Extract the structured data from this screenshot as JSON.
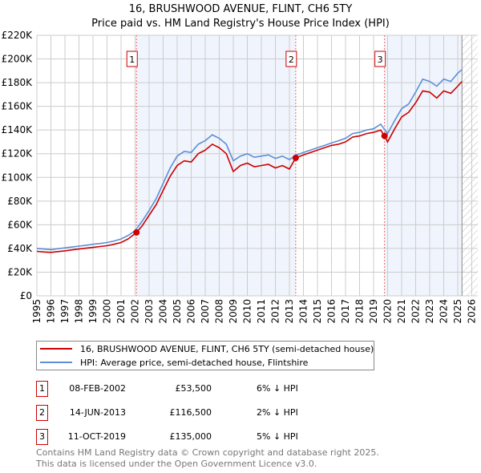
{
  "chart_data": {
    "type": "line",
    "title": "16, BRUSHWOOD AVENUE, FLINT, CH6 5TY",
    "subtitle": "Price paid vs. HM Land Registry's House Price Index (HPI)",
    "xlim": [
      1995,
      2026
    ],
    "ylim": [
      0,
      220000
    ],
    "x_ticks": [
      "1995",
      "1996",
      "1997",
      "1998",
      "1999",
      "2000",
      "2001",
      "2002",
      "2003",
      "2004",
      "2005",
      "2006",
      "2007",
      "2008",
      "2009",
      "2010",
      "2011",
      "2012",
      "2013",
      "2014",
      "2015",
      "2016",
      "2017",
      "2018",
      "2019",
      "2020",
      "2021",
      "2022",
      "2023",
      "2024",
      "2025",
      "2026"
    ],
    "y_ticks": [
      {
        "v": 0,
        "label": "£0"
      },
      {
        "v": 20000,
        "label": "£20K"
      },
      {
        "v": 40000,
        "label": "£40K"
      },
      {
        "v": 60000,
        "label": "£60K"
      },
      {
        "v": 80000,
        "label": "£80K"
      },
      {
        "v": 100000,
        "label": "£100K"
      },
      {
        "v": 120000,
        "label": "£120K"
      },
      {
        "v": 140000,
        "label": "£140K"
      },
      {
        "v": 160000,
        "label": "£160K"
      },
      {
        "v": 180000,
        "label": "£180K"
      },
      {
        "v": 200000,
        "label": "£200K"
      },
      {
        "v": 220000,
        "label": "£220K"
      }
    ],
    "grid": true,
    "series": [
      {
        "name": "16, BRUSHWOOD AVENUE, FLINT, CH6 5TY (semi-detached house)",
        "color": "#cc0000",
        "x": [
          1995,
          1995.5,
          1996,
          1996.5,
          1997,
          1997.5,
          1998,
          1998.5,
          1999,
          1999.5,
          2000,
          2000.5,
          2001,
          2001.5,
          2002.1,
          2002.5,
          2003,
          2003.5,
          2004,
          2004.5,
          2005,
          2005.5,
          2006,
          2006.5,
          2007,
          2007.5,
          2008,
          2008.5,
          2009,
          2009.5,
          2010,
          2010.5,
          2011,
          2011.5,
          2012,
          2012.5,
          2013,
          2013.45,
          2014,
          2014.5,
          2015,
          2015.5,
          2016,
          2016.5,
          2017,
          2017.5,
          2018,
          2018.5,
          2019,
          2019.5,
          2019.78,
          2020,
          2020.5,
          2021,
          2021.5,
          2022,
          2022.5,
          2023,
          2023.5,
          2024,
          2024.5,
          2025,
          2025.3
        ],
        "y": [
          37600,
          37000,
          36700,
          37400,
          38000,
          38800,
          39500,
          40200,
          40900,
          41600,
          42300,
          43500,
          45000,
          48000,
          53500,
          59000,
          68000,
          77000,
          89000,
          101000,
          110000,
          114000,
          113000,
          120000,
          123000,
          128000,
          125000,
          120000,
          105000,
          110000,
          112000,
          109000,
          110000,
          111000,
          108000,
          110000,
          107000,
          116500,
          119000,
          121000,
          123000,
          125000,
          127000,
          128000,
          130000,
          134000,
          135000,
          137000,
          138000,
          140000,
          135000,
          130000,
          141000,
          151000,
          155000,
          163000,
          173000,
          172000,
          167000,
          173000,
          171000,
          177000,
          181000
        ]
      },
      {
        "name": "HPI: Average price, semi-detached house, Flintshire",
        "color": "#5b8fd6",
        "x": [
          1995,
          1995.5,
          1996,
          1996.5,
          1997,
          1997.5,
          1998,
          1998.5,
          1999,
          1999.5,
          2000,
          2000.5,
          2001,
          2001.5,
          2002,
          2002.5,
          2003,
          2003.5,
          2004,
          2004.5,
          2005,
          2005.5,
          2006,
          2006.5,
          2007,
          2007.5,
          2008,
          2008.5,
          2009,
          2009.5,
          2010,
          2010.5,
          2011,
          2011.5,
          2012,
          2012.5,
          2013,
          2013.5,
          2014,
          2014.5,
          2015,
          2015.5,
          2016,
          2016.5,
          2017,
          2017.5,
          2018,
          2018.5,
          2019,
          2019.5,
          2020,
          2020.5,
          2021,
          2021.5,
          2022,
          2022.5,
          2023,
          2023.5,
          2024,
          2024.5,
          2025,
          2025.3
        ],
        "y": [
          40000,
          39500,
          39000,
          39800,
          40500,
          41200,
          42000,
          42700,
          43500,
          44200,
          45000,
          46300,
          48000,
          51000,
          55000,
          63000,
          72000,
          82000,
          95000,
          108000,
          118000,
          122000,
          121000,
          128000,
          131000,
          136000,
          133000,
          128000,
          114000,
          118000,
          120000,
          117000,
          118000,
          119000,
          116000,
          118000,
          115000,
          119000,
          121000,
          123000,
          125000,
          127000,
          129000,
          131000,
          133000,
          137000,
          138000,
          140000,
          141000,
          145000,
          137000,
          148000,
          158000,
          162000,
          172000,
          183000,
          181000,
          177000,
          183000,
          181000,
          188000,
          191000
        ]
      }
    ],
    "sales": [
      {
        "label": "1",
        "x": 2002.1,
        "y": 53500
      },
      {
        "label": "2",
        "x": 2013.45,
        "y": 116500
      },
      {
        "label": "3",
        "x": 2019.78,
        "y": 135000
      }
    ],
    "forecast_start": 2025.3
  },
  "legend": {
    "property": "16, BRUSHWOOD AVENUE, FLINT, CH6 5TY (semi-detached house)",
    "hpi": "HPI: Average price, semi-detached house, Flintshire"
  },
  "transactions": [
    {
      "num": "1",
      "date": "08-FEB-2002",
      "price": "£53,500",
      "hpi": "6% ↓ HPI"
    },
    {
      "num": "2",
      "date": "14-JUN-2013",
      "price": "£116,500",
      "hpi": "2% ↓ HPI"
    },
    {
      "num": "3",
      "date": "11-OCT-2019",
      "price": "£135,000",
      "hpi": "5% ↓ HPI"
    }
  ],
  "footer": {
    "line1": "Contains HM Land Registry data © Crown copyright and database right 2025.",
    "line2": "This data is licensed under the Open Government Licence v3.0."
  }
}
